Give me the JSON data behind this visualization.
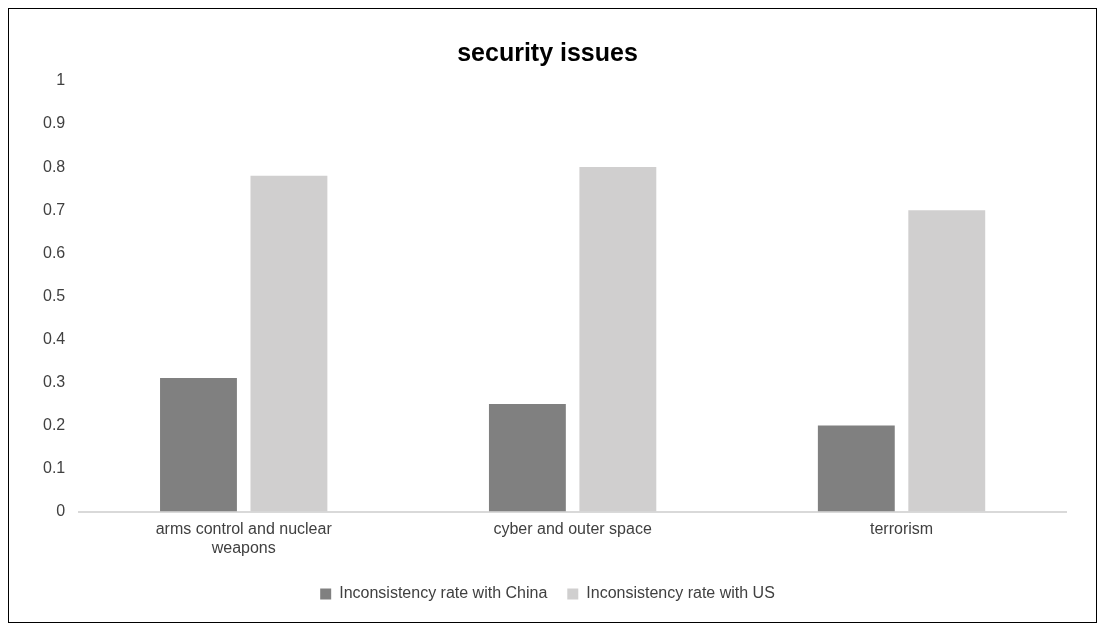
{
  "chart_data": {
    "type": "bar",
    "title": "security issues",
    "categories": [
      "arms control and nuclear weapons",
      "cyber and outer space",
      "terrorism"
    ],
    "series": [
      {
        "name": "Inconsistency rate with China",
        "color": "#808080",
        "values": [
          0.31,
          0.25,
          0.2
        ]
      },
      {
        "name": "Inconsistency rate with US",
        "color": "#d0cfcf",
        "values": [
          0.78,
          0.8,
          0.7
        ]
      }
    ],
    "ylim": [
      0,
      1
    ],
    "yticks": [
      0,
      0.1,
      0.2,
      0.3,
      0.4,
      0.5,
      0.6,
      0.7,
      0.8,
      0.9,
      1
    ],
    "grid": false,
    "legend": "bottom"
  }
}
